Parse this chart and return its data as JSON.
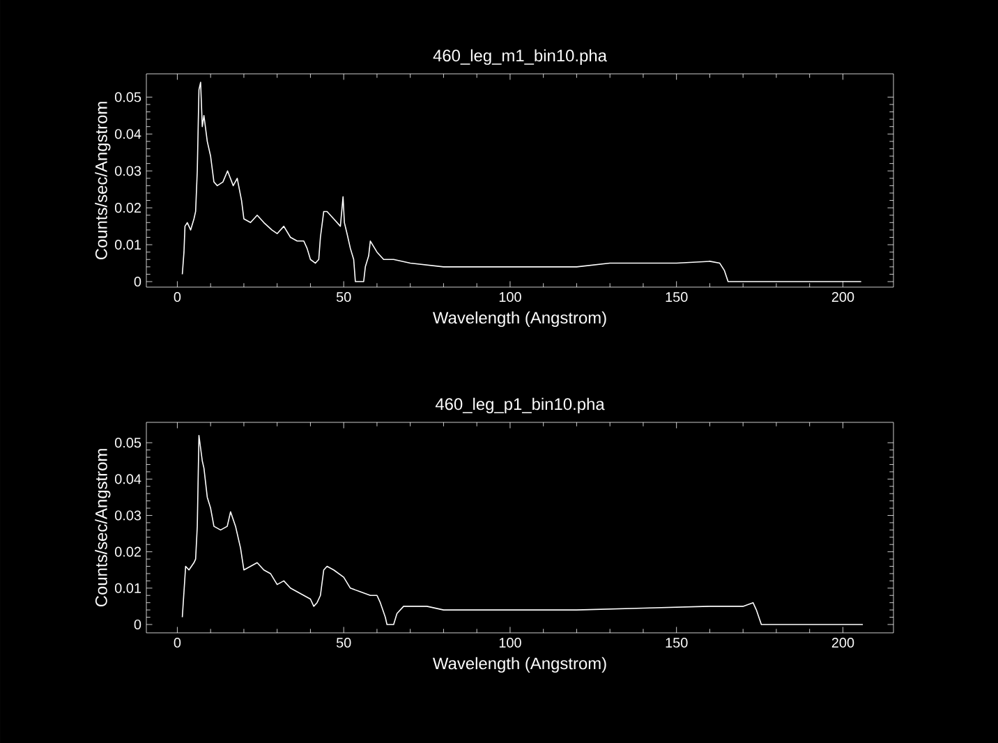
{
  "chart_data": [
    {
      "type": "line",
      "title": "460_leg_m1_bin10.pha",
      "xlabel": "Wavelength (Angstrom)",
      "ylabel": "Counts/sec/Angstrom",
      "color": "#ffffff",
      "x": [
        1.5,
        2,
        2.3,
        3,
        4,
        5,
        5.5,
        6,
        6.5,
        7,
        7.5,
        8,
        9,
        10,
        11,
        12,
        13.7,
        15.1,
        16.8,
        18,
        19.3,
        20,
        22,
        24,
        26,
        28.4,
        30,
        32,
        34,
        36,
        38,
        39,
        40,
        41.5,
        42.5,
        43,
        44,
        45,
        47,
        49,
        49.8,
        50.2,
        51,
        52,
        53,
        53.5,
        56,
        56.5,
        57.5,
        58,
        60,
        62,
        65,
        70,
        80,
        90,
        100,
        110,
        120,
        130,
        140,
        150,
        160,
        163,
        164.4,
        165.5,
        205.5
      ],
      "values": [
        0.002,
        0.008,
        0.015,
        0.016,
        0.014,
        0.017,
        0.019,
        0.03,
        0.052,
        0.054,
        0.042,
        0.045,
        0.038,
        0.034,
        0.027,
        0.026,
        0.027,
        0.03,
        0.026,
        0.028,
        0.022,
        0.017,
        0.016,
        0.018,
        0.016,
        0.014,
        0.013,
        0.015,
        0.012,
        0.011,
        0.011,
        0.009,
        0.006,
        0.005,
        0.006,
        0.012,
        0.019,
        0.019,
        0.017,
        0.015,
        0.023,
        0.016,
        0.013,
        0.009,
        0.006,
        0.0,
        0.0,
        0.004,
        0.007,
        0.011,
        0.008,
        0.006,
        0.006,
        0.005,
        0.004,
        0.004,
        0.004,
        0.004,
        0.004,
        0.005,
        0.005,
        0.005,
        0.0055,
        0.005,
        0.003,
        0.0,
        0.0
      ],
      "xlim": [
        -9.3,
        215.2
      ],
      "ylim": [
        -0.0015,
        0.0563
      ],
      "xticks": [
        0,
        50,
        100,
        150,
        200
      ],
      "yticks": [
        0,
        0.01,
        0.02,
        0.03,
        0.04,
        0.05
      ]
    },
    {
      "type": "line",
      "title": "460_leg_p1_bin10.pha",
      "xlabel": "Wavelength (Angstrom)",
      "ylabel": "Counts/sec/Angstrom",
      "color": "#ffffff",
      "x": [
        1.5,
        2.5,
        3.5,
        5,
        5.5,
        6,
        6.5,
        7.5,
        8,
        9,
        10,
        11,
        13,
        15,
        16,
        17.5,
        19,
        20,
        22,
        24,
        26,
        28,
        30,
        32,
        34,
        36,
        38,
        40,
        41,
        42,
        43,
        44,
        45,
        47,
        50,
        52,
        55,
        58,
        60,
        61,
        62.5,
        63,
        65,
        66,
        68,
        75,
        80,
        90,
        100,
        120,
        140,
        160,
        170,
        173,
        174,
        175.5,
        206
      ],
      "values": [
        0.002,
        0.016,
        0.015,
        0.017,
        0.018,
        0.027,
        0.052,
        0.045,
        0.043,
        0.035,
        0.032,
        0.027,
        0.026,
        0.027,
        0.031,
        0.027,
        0.021,
        0.015,
        0.016,
        0.017,
        0.015,
        0.014,
        0.011,
        0.012,
        0.01,
        0.009,
        0.008,
        0.007,
        0.005,
        0.006,
        0.008,
        0.015,
        0.016,
        0.015,
        0.013,
        0.01,
        0.009,
        0.008,
        0.008,
        0.006,
        0.002,
        0.0,
        0.0,
        0.003,
        0.005,
        0.005,
        0.004,
        0.004,
        0.004,
        0.004,
        0.0045,
        0.005,
        0.005,
        0.006,
        0.004,
        0.0,
        0.0
      ],
      "xlim": [
        -9.3,
        215.2
      ],
      "ylim": [
        -0.0023,
        0.0556
      ],
      "xticks": [
        0,
        50,
        100,
        150,
        200
      ],
      "yticks": [
        0,
        0.01,
        0.02,
        0.03,
        0.04,
        0.05
      ]
    }
  ]
}
